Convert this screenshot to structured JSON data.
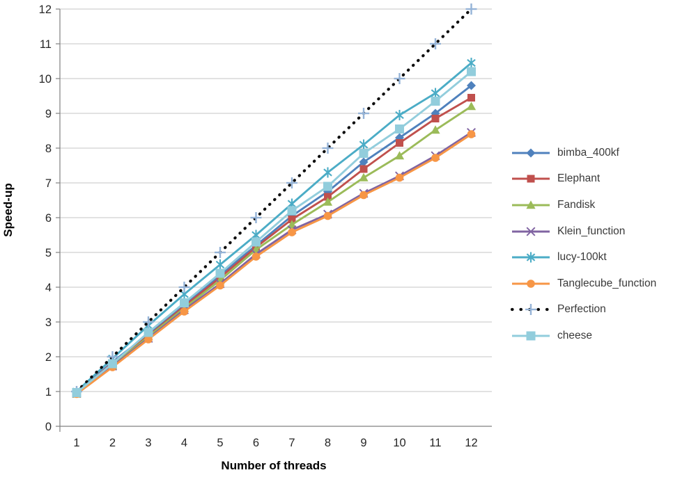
{
  "chart_data": {
    "type": "line",
    "title": "",
    "xlabel": "Number of threads",
    "ylabel": "Speed-up",
    "x": [
      1,
      2,
      3,
      4,
      5,
      6,
      7,
      8,
      9,
      10,
      11,
      12
    ],
    "xlim": [
      0.5,
      12.5
    ],
    "ylim": [
      0,
      12
    ],
    "yticks": [
      0,
      1,
      2,
      3,
      4,
      5,
      6,
      7,
      8,
      9,
      10,
      11,
      12
    ],
    "xticks": [
      1,
      2,
      3,
      4,
      5,
      6,
      7,
      8,
      9,
      10,
      11,
      12
    ],
    "grid": true,
    "legend_position": "right",
    "gridline_color": "#C6C6C6",
    "axis_color": "#808080",
    "tick_label_color": "#262626",
    "series": [
      {
        "name": "bimba_400kf",
        "color": "#4F81BD",
        "marker": "diamond",
        "line": "solid",
        "values": [
          0.97,
          1.85,
          2.65,
          3.5,
          4.35,
          5.2,
          6.05,
          6.75,
          7.6,
          8.3,
          9.0,
          9.8
        ]
      },
      {
        "name": "Elephant",
        "color": "#C0504D",
        "marker": "square",
        "line": "solid",
        "values": [
          0.96,
          1.82,
          2.6,
          3.45,
          4.28,
          5.15,
          5.95,
          6.6,
          7.4,
          8.15,
          8.85,
          9.45
        ]
      },
      {
        "name": "Fandisk",
        "color": "#9BBB59",
        "marker": "triangle",
        "line": "solid",
        "values": [
          0.93,
          1.75,
          2.58,
          3.4,
          4.2,
          5.08,
          5.8,
          6.45,
          7.15,
          7.78,
          8.52,
          9.2
        ]
      },
      {
        "name": "Klein_function",
        "color": "#8064A2",
        "marker": "x",
        "line": "solid",
        "values": [
          0.95,
          1.73,
          2.53,
          3.35,
          4.1,
          4.95,
          5.65,
          6.1,
          6.7,
          7.2,
          7.78,
          8.45
        ]
      },
      {
        "name": "lucy-100kt",
        "color": "#4BACC6",
        "marker": "asterisk",
        "line": "solid",
        "values": [
          1.0,
          1.95,
          2.9,
          3.8,
          4.65,
          5.5,
          6.4,
          7.3,
          8.1,
          8.95,
          9.58,
          10.45
        ]
      },
      {
        "name": "Tanglecube_function",
        "color": "#F79646",
        "marker": "circle",
        "line": "solid",
        "values": [
          0.93,
          1.7,
          2.5,
          3.3,
          4.05,
          4.88,
          5.58,
          6.05,
          6.65,
          7.15,
          7.72,
          8.4
        ]
      },
      {
        "name": "Perfection",
        "color": "#0d0d0d",
        "marker": "plus",
        "marker_color": "#95B3D7",
        "line": "dotted",
        "values": [
          1,
          2,
          3,
          4,
          5,
          6,
          7,
          8,
          9,
          10,
          11,
          12
        ]
      },
      {
        "name": "cheese",
        "color": "#92CDDC",
        "marker": "square-large",
        "line": "solid",
        "values": [
          0.97,
          1.8,
          2.7,
          3.55,
          4.4,
          5.3,
          6.2,
          6.9,
          7.85,
          8.55,
          9.35,
          10.2
        ]
      }
    ]
  }
}
